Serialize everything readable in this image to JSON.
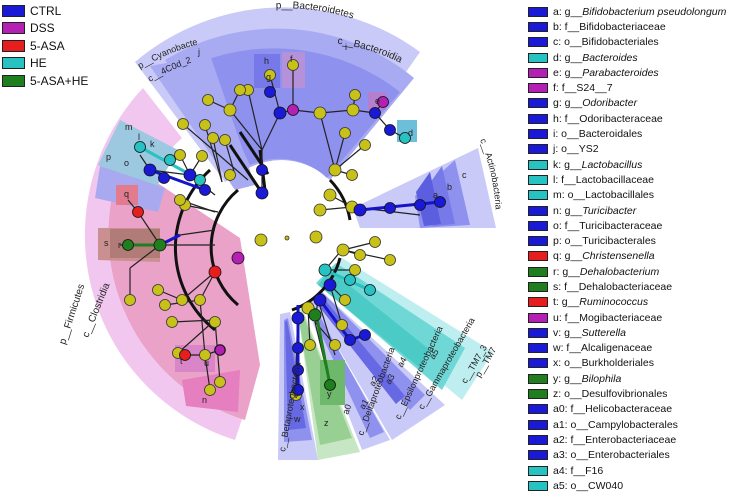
{
  "groups": [
    {
      "name": "CTRL",
      "color": "#1a1ad6"
    },
    {
      "name": "DSS",
      "color": "#b41fb4"
    },
    {
      "name": "5-ASA",
      "color": "#e61e1e"
    },
    {
      "name": "HE",
      "color": "#27c2c2"
    },
    {
      "name": "5-ASA+HE",
      "color": "#1f7f1f"
    }
  ],
  "features": [
    {
      "prefix": "a: g__",
      "name": "Bifidobacterium pseudolongum",
      "italic": true,
      "group": "CTRL"
    },
    {
      "prefix": "b: f__",
      "name": "Bifidobacteriaceae",
      "italic": false,
      "group": "CTRL"
    },
    {
      "prefix": "c: o__",
      "name": "Bifidobacteriales",
      "italic": false,
      "group": "CTRL"
    },
    {
      "prefix": "d: g__",
      "name": "Bacteroides",
      "italic": true,
      "group": "HE"
    },
    {
      "prefix": "e: g__",
      "name": "Parabacteroides",
      "italic": true,
      "group": "DSS"
    },
    {
      "prefix": "f: f__",
      "name": "S24__7",
      "italic": false,
      "group": "DSS"
    },
    {
      "prefix": "g: g__",
      "name": "Odoribacter",
      "italic": true,
      "group": "CTRL"
    },
    {
      "prefix": "h: f__",
      "name": "Odoribacteraceae",
      "italic": false,
      "group": "CTRL"
    },
    {
      "prefix": "i: o__",
      "name": "Bacteroidales",
      "italic": false,
      "group": "CTRL"
    },
    {
      "prefix": "j: o__",
      "name": "YS2",
      "italic": false,
      "group": "CTRL"
    },
    {
      "prefix": "k: g__",
      "name": "Lactobacillus",
      "italic": true,
      "group": "HE"
    },
    {
      "prefix": "l: f__",
      "name": "Lactobacillaceae",
      "italic": false,
      "group": "HE"
    },
    {
      "prefix": "m: o__",
      "name": "Lactobacillales",
      "italic": false,
      "group": "HE"
    },
    {
      "prefix": "n: g__",
      "name": "Turicibacter",
      "italic": true,
      "group": "CTRL"
    },
    {
      "prefix": "o: f__",
      "name": "Turicibacteraceae",
      "italic": false,
      "group": "CTRL"
    },
    {
      "prefix": "p: o__",
      "name": "Turicibacterales",
      "italic": false,
      "group": "CTRL"
    },
    {
      "prefix": "q: g__",
      "name": "Christensenella",
      "italic": true,
      "group": "5-ASA"
    },
    {
      "prefix": "r: g__",
      "name": "Dehalobacterium",
      "italic": true,
      "group": "5-ASA+HE"
    },
    {
      "prefix": "s: f__",
      "name": "Dehalobacteriaceae",
      "italic": false,
      "group": "5-ASA+HE"
    },
    {
      "prefix": "t: g__",
      "name": "Ruminococcus",
      "italic": true,
      "group": "5-ASA"
    },
    {
      "prefix": "u: f__",
      "name": "Mogibacteriaceae",
      "italic": false,
      "group": "DSS"
    },
    {
      "prefix": "v: g__",
      "name": "Sutterella",
      "italic": true,
      "group": "CTRL"
    },
    {
      "prefix": "w: f__",
      "name": "Alcaligenaceae",
      "italic": false,
      "group": "CTRL"
    },
    {
      "prefix": "x: o__",
      "name": "Burkholderiales",
      "italic": false,
      "group": "CTRL"
    },
    {
      "prefix": "y: g__",
      "name": "Bilophila",
      "italic": true,
      "group": "5-ASA+HE"
    },
    {
      "prefix": "z: o__",
      "name": "Desulfovibrionales",
      "italic": false,
      "group": "5-ASA+HE"
    },
    {
      "prefix": "a0: f__",
      "name": "Helicobacteraceae",
      "italic": false,
      "group": "CTRL"
    },
    {
      "prefix": "a1: o__",
      "name": "Campylobacterales",
      "italic": false,
      "group": "CTRL"
    },
    {
      "prefix": "a2: f__",
      "name": "Enterobacteriaceae",
      "italic": false,
      "group": "CTRL"
    },
    {
      "prefix": "a3: o__",
      "name": "Enterobacteriales",
      "italic": false,
      "group": "CTRL"
    },
    {
      "prefix": "a4: f__",
      "name": "F16",
      "italic": false,
      "group": "HE"
    },
    {
      "prefix": "a5: o__",
      "name": "CW040",
      "italic": false,
      "group": "HE"
    }
  ],
  "clades": {
    "phyla": [
      {
        "label": "p__Bacteroidetes"
      },
      {
        "label": "p__Cyanobacteria"
      },
      {
        "label": "p__Firmicutes"
      },
      {
        "label": "p__TM7"
      }
    ],
    "classes": [
      {
        "label": "c__Bacteroidia"
      },
      {
        "label": "c__4C0d_2"
      },
      {
        "label": "c__Clostridia"
      },
      {
        "label": "c__Actinobacteria"
      },
      {
        "label": "c__TM7_3"
      },
      {
        "label": "c__Gammaproteobacteria"
      },
      {
        "label": "c__Epsilonproteobacteria"
      },
      {
        "label": "c__Deltaproteobacteria"
      },
      {
        "label": "c__Betaproteobacteria"
      }
    ],
    "sectors": [
      {
        "label": "i"
      },
      {
        "label": "c"
      },
      {
        "label": "b"
      },
      {
        "label": "j"
      },
      {
        "label": "m"
      },
      {
        "label": "l"
      },
      {
        "label": "p"
      },
      {
        "label": "o"
      },
      {
        "label": "s"
      },
      {
        "label": "n"
      },
      {
        "label": "a5"
      },
      {
        "label": "a4"
      },
      {
        "label": "a3"
      },
      {
        "label": "a2"
      },
      {
        "label": "a1"
      },
      {
        "label": "a0"
      },
      {
        "label": "z"
      },
      {
        "label": "x"
      },
      {
        "label": "w"
      },
      {
        "label": "h"
      },
      {
        "label": "g"
      },
      {
        "label": "f"
      },
      {
        "label": "e"
      },
      {
        "label": "d"
      },
      {
        "label": "a"
      },
      {
        "label": "k"
      },
      {
        "label": "q"
      },
      {
        "label": "r"
      },
      {
        "label": "t"
      },
      {
        "label": "u"
      },
      {
        "label": "y"
      },
      {
        "label": "v"
      }
    ]
  }
}
